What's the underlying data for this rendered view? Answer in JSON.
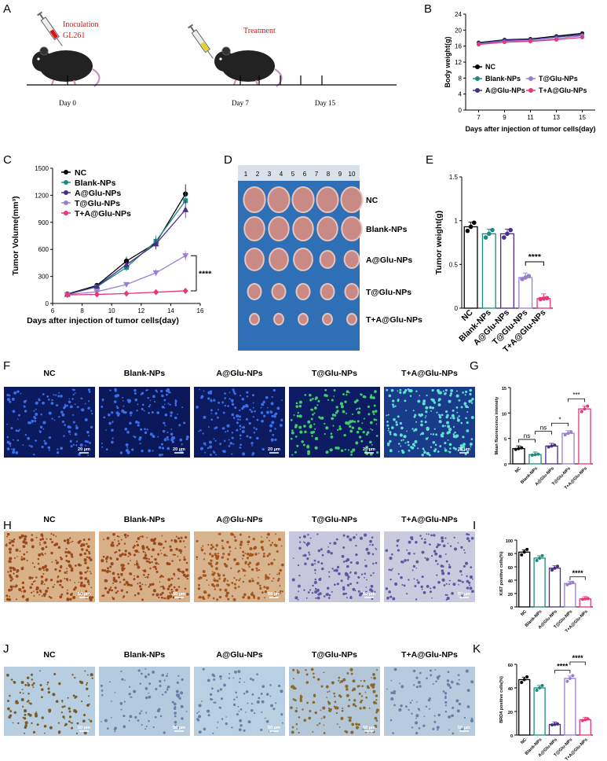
{
  "figure": {
    "panels": [
      "A",
      "B",
      "C",
      "D",
      "E",
      "F",
      "G",
      "H",
      "I",
      "J",
      "K"
    ],
    "groups": [
      "NC",
      "Blank-NPs",
      "A@Glu-NPs",
      "T@Glu-NPs",
      "T+A@Glu-NPs"
    ],
    "panel_A": {
      "inoculation": "Inoculation",
      "cell_line": "GL261",
      "treatment": "Treatment",
      "days": [
        "Day 0",
        "Day 7",
        "Day 15"
      ]
    },
    "panel_D": {
      "ruler": [
        "1",
        "2",
        "3",
        "4",
        "5",
        "6",
        "7",
        "8",
        "9",
        "10"
      ],
      "row_labels": [
        "NC",
        "Blank-NPs",
        "A@Glu-NPs",
        "T@Glu-NPs",
        "T+A@Glu-NPs"
      ]
    },
    "scale_bar": "20 μm",
    "scale_bar_k": "50 μm"
  },
  "colors": {
    "NC": "#000000",
    "Blank-NPs": "#1a8c7e",
    "A@Glu-NPs": "#4b2c8a",
    "T@Glu-NPs": "#9a7fd1",
    "T+A@Glu-NPs": "#e8367a"
  },
  "chart_data": [
    {
      "panel": "B",
      "type": "line",
      "ylabel": "Body weight(g)",
      "xlabel": "Days after injection of tumor cells(day)",
      "x": [
        7,
        9,
        11,
        13,
        15
      ],
      "xlim": [
        6,
        16
      ],
      "ylim": [
        0,
        24
      ],
      "yticks": [
        0,
        4,
        8,
        12,
        16,
        20,
        24
      ],
      "series": [
        {
          "name": "NC",
          "values": [
            16.9,
            17.6,
            17.8,
            18.5,
            19.2
          ]
        },
        {
          "name": "Blank-NPs",
          "values": [
            16.7,
            17.4,
            17.6,
            18.3,
            18.8
          ]
        },
        {
          "name": "A@Glu-NPs",
          "values": [
            16.8,
            17.5,
            17.7,
            18.3,
            18.9
          ]
        },
        {
          "name": "T@Glu-NPs",
          "values": [
            16.5,
            17.1,
            17.3,
            17.9,
            18.6
          ]
        },
        {
          "name": "T+A@Glu-NPs",
          "values": [
            16.4,
            17.0,
            17.2,
            17.6,
            18.2
          ]
        }
      ]
    },
    {
      "panel": "C",
      "type": "line",
      "ylabel": "Tumor Volume(mm³)",
      "xlabel": "Days after injection of tumor cells(day)",
      "x": [
        7,
        9,
        11,
        13,
        15
      ],
      "xlim": [
        6,
        16
      ],
      "ylim": [
        0,
        1500
      ],
      "xticks": [
        6,
        8,
        10,
        12,
        14,
        16
      ],
      "yticks": [
        0,
        300,
        600,
        900,
        1200,
        1500
      ],
      "annotation": "****",
      "series": [
        {
          "name": "NC",
          "values": [
            105,
            200,
            470,
            670,
            1215
          ]
        },
        {
          "name": "Blank-NPs",
          "values": [
            100,
            185,
            400,
            690,
            1140
          ]
        },
        {
          "name": "A@Glu-NPs",
          "values": [
            100,
            190,
            430,
            660,
            1040
          ]
        },
        {
          "name": "T@Glu-NPs",
          "values": [
            98,
            130,
            210,
            340,
            530
          ]
        },
        {
          "name": "T+A@Glu-NPs",
          "values": [
            95,
            100,
            110,
            125,
            140
          ]
        }
      ]
    },
    {
      "panel": "E",
      "type": "bar",
      "ylabel": "Tumor weight(g)",
      "categories": [
        "NC",
        "Blank-NPs",
        "A@Glu-NPs",
        "T@Glu-NPs",
        "T+A@Glu-NPs"
      ],
      "values": [
        0.93,
        0.85,
        0.85,
        0.35,
        0.11
      ],
      "ylim": [
        0,
        1.5
      ],
      "yticks": [
        0.0,
        0.5,
        1.0,
        1.5
      ],
      "annotation": "****"
    },
    {
      "panel": "G",
      "type": "bar",
      "ylabel": "Mean fluorescence intensity",
      "categories": [
        "NC",
        "Blank-NPs",
        "A@Glu-NPs",
        "T@Glu-NPs",
        "T+A@Glu-NPs"
      ],
      "values": [
        3.0,
        1.8,
        3.5,
        6.0,
        10.8
      ],
      "ylim": [
        0,
        15
      ],
      "yticks": [
        0,
        5,
        10,
        15
      ],
      "annotations": [
        "ns",
        "ns",
        "*",
        "***"
      ]
    },
    {
      "panel": "I",
      "type": "bar",
      "ylabel": "Ki67 positive cells(%)",
      "categories": [
        "NC",
        "Blank-NPs",
        "A@Glu-NPs",
        "T@Glu-NPs",
        "T+A@Glu-NPs"
      ],
      "values": [
        82,
        73,
        58,
        35,
        12
      ],
      "ylim": [
        0,
        100
      ],
      "yticks": [
        0,
        20,
        40,
        60,
        80,
        100
      ],
      "annotation": "****"
    },
    {
      "panel": "K",
      "type": "bar",
      "ylabel": "BRD4 positive cells(%)",
      "categories": [
        "NC",
        "Blank-NPs",
        "A@Glu-NPs",
        "T@Glu-NPs",
        "T+A@Glu-NPs"
      ],
      "values": [
        47,
        40,
        9,
        48,
        13
      ],
      "ylim": [
        0,
        60
      ],
      "yticks": [
        0,
        20,
        40,
        60
      ],
      "annotations": [
        "****",
        "****"
      ]
    }
  ]
}
